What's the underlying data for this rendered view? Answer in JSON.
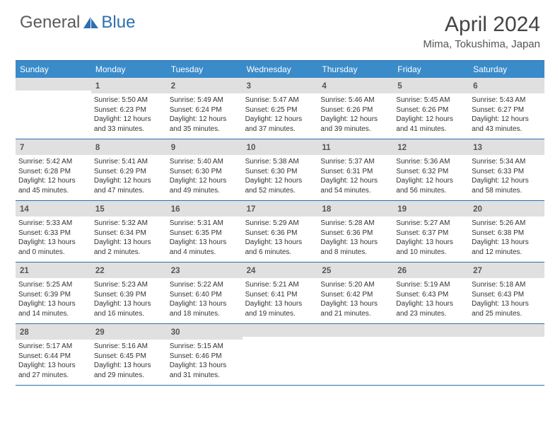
{
  "brand": {
    "part1": "General",
    "part2": "Blue"
  },
  "title": "April 2024",
  "location": "Mima, Tokushima, Japan",
  "colors": {
    "header_bg": "#3a8bc9",
    "border": "#2c6fb0",
    "daynum_bg": "#e0e0e0",
    "text": "#333333",
    "title_text": "#444444"
  },
  "dayNames": [
    "Sunday",
    "Monday",
    "Tuesday",
    "Wednesday",
    "Thursday",
    "Friday",
    "Saturday"
  ],
  "weeks": [
    [
      null,
      {
        "n": "1",
        "sr": "Sunrise: 5:50 AM",
        "ss": "Sunset: 6:23 PM",
        "d1": "Daylight: 12 hours",
        "d2": "and 33 minutes."
      },
      {
        "n": "2",
        "sr": "Sunrise: 5:49 AM",
        "ss": "Sunset: 6:24 PM",
        "d1": "Daylight: 12 hours",
        "d2": "and 35 minutes."
      },
      {
        "n": "3",
        "sr": "Sunrise: 5:47 AM",
        "ss": "Sunset: 6:25 PM",
        "d1": "Daylight: 12 hours",
        "d2": "and 37 minutes."
      },
      {
        "n": "4",
        "sr": "Sunrise: 5:46 AM",
        "ss": "Sunset: 6:26 PM",
        "d1": "Daylight: 12 hours",
        "d2": "and 39 minutes."
      },
      {
        "n": "5",
        "sr": "Sunrise: 5:45 AM",
        "ss": "Sunset: 6:26 PM",
        "d1": "Daylight: 12 hours",
        "d2": "and 41 minutes."
      },
      {
        "n": "6",
        "sr": "Sunrise: 5:43 AM",
        "ss": "Sunset: 6:27 PM",
        "d1": "Daylight: 12 hours",
        "d2": "and 43 minutes."
      }
    ],
    [
      {
        "n": "7",
        "sr": "Sunrise: 5:42 AM",
        "ss": "Sunset: 6:28 PM",
        "d1": "Daylight: 12 hours",
        "d2": "and 45 minutes."
      },
      {
        "n": "8",
        "sr": "Sunrise: 5:41 AM",
        "ss": "Sunset: 6:29 PM",
        "d1": "Daylight: 12 hours",
        "d2": "and 47 minutes."
      },
      {
        "n": "9",
        "sr": "Sunrise: 5:40 AM",
        "ss": "Sunset: 6:30 PM",
        "d1": "Daylight: 12 hours",
        "d2": "and 49 minutes."
      },
      {
        "n": "10",
        "sr": "Sunrise: 5:38 AM",
        "ss": "Sunset: 6:30 PM",
        "d1": "Daylight: 12 hours",
        "d2": "and 52 minutes."
      },
      {
        "n": "11",
        "sr": "Sunrise: 5:37 AM",
        "ss": "Sunset: 6:31 PM",
        "d1": "Daylight: 12 hours",
        "d2": "and 54 minutes."
      },
      {
        "n": "12",
        "sr": "Sunrise: 5:36 AM",
        "ss": "Sunset: 6:32 PM",
        "d1": "Daylight: 12 hours",
        "d2": "and 56 minutes."
      },
      {
        "n": "13",
        "sr": "Sunrise: 5:34 AM",
        "ss": "Sunset: 6:33 PM",
        "d1": "Daylight: 12 hours",
        "d2": "and 58 minutes."
      }
    ],
    [
      {
        "n": "14",
        "sr": "Sunrise: 5:33 AM",
        "ss": "Sunset: 6:33 PM",
        "d1": "Daylight: 13 hours",
        "d2": "and 0 minutes."
      },
      {
        "n": "15",
        "sr": "Sunrise: 5:32 AM",
        "ss": "Sunset: 6:34 PM",
        "d1": "Daylight: 13 hours",
        "d2": "and 2 minutes."
      },
      {
        "n": "16",
        "sr": "Sunrise: 5:31 AM",
        "ss": "Sunset: 6:35 PM",
        "d1": "Daylight: 13 hours",
        "d2": "and 4 minutes."
      },
      {
        "n": "17",
        "sr": "Sunrise: 5:29 AM",
        "ss": "Sunset: 6:36 PM",
        "d1": "Daylight: 13 hours",
        "d2": "and 6 minutes."
      },
      {
        "n": "18",
        "sr": "Sunrise: 5:28 AM",
        "ss": "Sunset: 6:36 PM",
        "d1": "Daylight: 13 hours",
        "d2": "and 8 minutes."
      },
      {
        "n": "19",
        "sr": "Sunrise: 5:27 AM",
        "ss": "Sunset: 6:37 PM",
        "d1": "Daylight: 13 hours",
        "d2": "and 10 minutes."
      },
      {
        "n": "20",
        "sr": "Sunrise: 5:26 AM",
        "ss": "Sunset: 6:38 PM",
        "d1": "Daylight: 13 hours",
        "d2": "and 12 minutes."
      }
    ],
    [
      {
        "n": "21",
        "sr": "Sunrise: 5:25 AM",
        "ss": "Sunset: 6:39 PM",
        "d1": "Daylight: 13 hours",
        "d2": "and 14 minutes."
      },
      {
        "n": "22",
        "sr": "Sunrise: 5:23 AM",
        "ss": "Sunset: 6:39 PM",
        "d1": "Daylight: 13 hours",
        "d2": "and 16 minutes."
      },
      {
        "n": "23",
        "sr": "Sunrise: 5:22 AM",
        "ss": "Sunset: 6:40 PM",
        "d1": "Daylight: 13 hours",
        "d2": "and 18 minutes."
      },
      {
        "n": "24",
        "sr": "Sunrise: 5:21 AM",
        "ss": "Sunset: 6:41 PM",
        "d1": "Daylight: 13 hours",
        "d2": "and 19 minutes."
      },
      {
        "n": "25",
        "sr": "Sunrise: 5:20 AM",
        "ss": "Sunset: 6:42 PM",
        "d1": "Daylight: 13 hours",
        "d2": "and 21 minutes."
      },
      {
        "n": "26",
        "sr": "Sunrise: 5:19 AM",
        "ss": "Sunset: 6:43 PM",
        "d1": "Daylight: 13 hours",
        "d2": "and 23 minutes."
      },
      {
        "n": "27",
        "sr": "Sunrise: 5:18 AM",
        "ss": "Sunset: 6:43 PM",
        "d1": "Daylight: 13 hours",
        "d2": "and 25 minutes."
      }
    ],
    [
      {
        "n": "28",
        "sr": "Sunrise: 5:17 AM",
        "ss": "Sunset: 6:44 PM",
        "d1": "Daylight: 13 hours",
        "d2": "and 27 minutes."
      },
      {
        "n": "29",
        "sr": "Sunrise: 5:16 AM",
        "ss": "Sunset: 6:45 PM",
        "d1": "Daylight: 13 hours",
        "d2": "and 29 minutes."
      },
      {
        "n": "30",
        "sr": "Sunrise: 5:15 AM",
        "ss": "Sunset: 6:46 PM",
        "d1": "Daylight: 13 hours",
        "d2": "and 31 minutes."
      },
      null,
      null,
      null,
      null
    ]
  ]
}
